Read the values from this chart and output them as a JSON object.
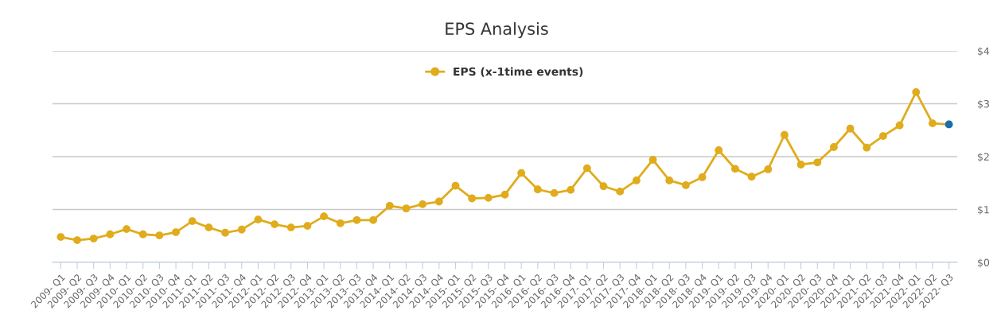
{
  "chart_data": {
    "type": "line",
    "title": "EPS Analysis",
    "categories": [
      "2009- Q1",
      "2009- Q2",
      "2009- Q3",
      "2009- Q4",
      "2010- Q1",
      "2010- Q2",
      "2010- Q3",
      "2010- Q4",
      "2011- Q1",
      "2011- Q2",
      "2011- Q3",
      "2011- Q4",
      "2012- Q1",
      "2012- Q2",
      "2012- Q3",
      "2012- Q4",
      "2013- Q1",
      "2013- Q2",
      "2013- Q3",
      "2013- Q4",
      "2014- Q1",
      "2014- Q2",
      "2014- Q3",
      "2014- Q4",
      "2015- Q1",
      "2015- Q2",
      "2015- Q3",
      "2015- Q4",
      "2016- Q1",
      "2016- Q2",
      "2016- Q3",
      "2016- Q4",
      "2017- Q1",
      "2017- Q2",
      "2017- Q3",
      "2017- Q4",
      "2018- Q1",
      "2018- Q2",
      "2018- Q3",
      "2018- Q4",
      "2019- Q1",
      "2019- Q2",
      "2019- Q3",
      "2019- Q4",
      "2020- Q1",
      "2020- Q2",
      "2020- Q3",
      "2020- Q4",
      "2021- Q1",
      "2021- Q2",
      "2021- Q3",
      "2021- Q4",
      "2022- Q1",
      "2022- Q2",
      "2022- Q3"
    ],
    "series": [
      {
        "name": "EPS (x-1time events)",
        "color": "#e0ac1c",
        "colors": [
          "#e0ac1c",
          "#e0ac1c",
          "#e0ac1c",
          "#e0ac1c",
          "#e0ac1c",
          "#e0ac1c",
          "#e0ac1c",
          "#e0ac1c",
          "#e0ac1c",
          "#e0ac1c",
          "#e0ac1c",
          "#e0ac1c",
          "#e0ac1c",
          "#e0ac1c",
          "#e0ac1c",
          "#e0ac1c",
          "#e0ac1c",
          "#e0ac1c",
          "#e0ac1c",
          "#e0ac1c",
          "#e0ac1c",
          "#e0ac1c",
          "#e0ac1c",
          "#e0ac1c",
          "#e0ac1c",
          "#e0ac1c",
          "#e0ac1c",
          "#e0ac1c",
          "#e0ac1c",
          "#e0ac1c",
          "#e0ac1c",
          "#e0ac1c",
          "#e0ac1c",
          "#e0ac1c",
          "#e0ac1c",
          "#e0ac1c",
          "#e0ac1c",
          "#e0ac1c",
          "#e0ac1c",
          "#e0ac1c",
          "#e0ac1c",
          "#e0ac1c",
          "#e0ac1c",
          "#e0ac1c",
          "#e0ac1c",
          "#e0ac1c",
          "#e0ac1c",
          "#e0ac1c",
          "#e0ac1c",
          "#e0ac1c",
          "#e0ac1c",
          "#e0ac1c",
          "#e0ac1c",
          "#e0ac1c",
          "#1a6fa8"
        ],
        "values": [
          0.48,
          0.42,
          0.45,
          0.53,
          0.63,
          0.53,
          0.51,
          0.57,
          0.78,
          0.66,
          0.56,
          0.62,
          0.81,
          0.72,
          0.66,
          0.69,
          0.87,
          0.74,
          0.8,
          0.8,
          1.07,
          1.02,
          1.1,
          1.15,
          1.45,
          1.21,
          1.22,
          1.28,
          1.69,
          1.38,
          1.31,
          1.37,
          1.78,
          1.44,
          1.34,
          1.55,
          1.94,
          1.55,
          1.46,
          1.61,
          2.12,
          1.77,
          1.62,
          1.76,
          2.41,
          1.85,
          1.89,
          2.18,
          2.53,
          2.17,
          2.39,
          2.59,
          3.22,
          2.63,
          2.61
        ]
      }
    ],
    "ylim": [
      0,
      4
    ],
    "yticks": [
      {
        "value": 0,
        "label": "$0"
      },
      {
        "value": 1,
        "label": "$1"
      },
      {
        "value": 2,
        "label": "$2"
      },
      {
        "value": 3,
        "label": "$3"
      },
      {
        "value": 4,
        "label": "$4"
      }
    ],
    "grid": "y",
    "legend": "top",
    "marker": "circle",
    "line_style": "solid"
  }
}
